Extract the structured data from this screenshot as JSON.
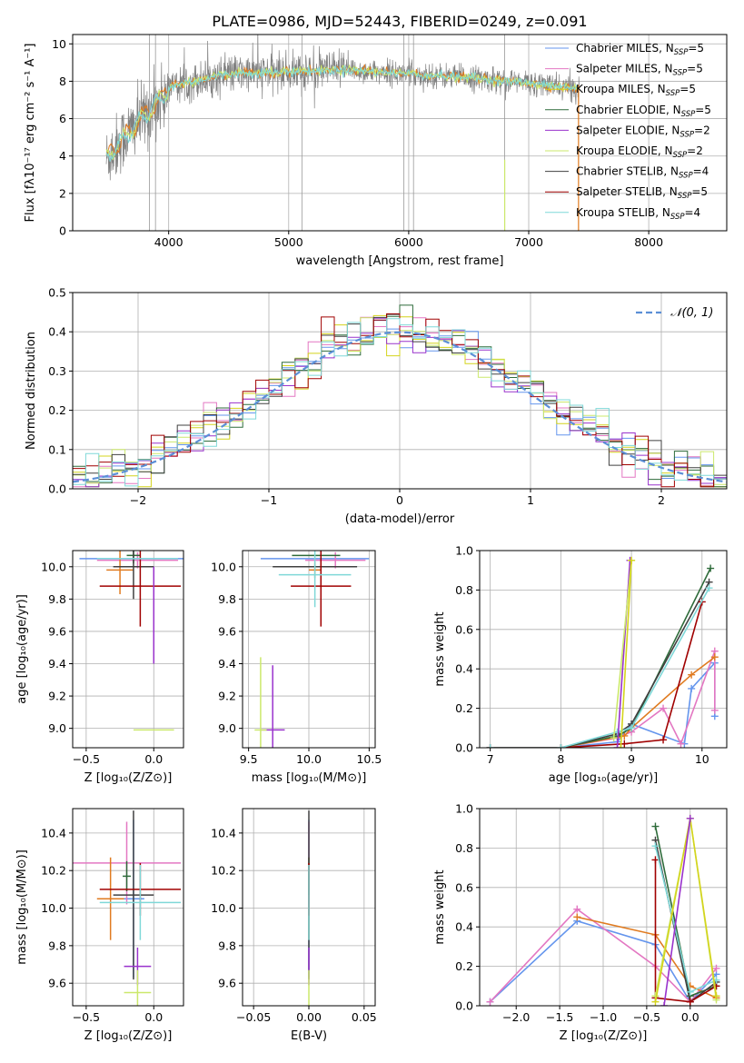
{
  "title": "PLATE=0986, MJD=52443, FIBERID=0249, z=0.091",
  "colors": {
    "chabrier_miles": "#6495ed",
    "salpeter_miles": "#e377c2",
    "kroupa_miles": "#d4d41c",
    "chabrier_elodie": "#2e6b3a",
    "salpeter_elodie": "#9932cc",
    "kroupa_elodie": "#cbe86b",
    "chabrier_stelib": "#404040",
    "salpeter_stelib": "#a00000",
    "kroupa_stelib": "#7fd8d8",
    "orange": "#e07b20",
    "data": "#808080",
    "normal": "#5b8fd6"
  },
  "legend": [
    {
      "label": "Chabrier MILES, N",
      "sub": "SSP",
      "val": "=5",
      "color": "#6495ed"
    },
    {
      "label": "Salpeter MILES, N",
      "sub": "SSP",
      "val": "=5",
      "color": "#e377c2"
    },
    {
      "label": "Kroupa MILES, N",
      "sub": "SSP",
      "val": "=5",
      "color": "#d4d41c"
    },
    {
      "label": "Chabrier ELODIE, N",
      "sub": "SSP",
      "val": "=5",
      "color": "#2e6b3a"
    },
    {
      "label": "Salpeter ELODIE, N",
      "sub": "SSP",
      "val": "=2",
      "color": "#9932cc"
    },
    {
      "label": "Kroupa ELODIE, N",
      "sub": "SSP",
      "val": "=2",
      "color": "#cbe86b"
    },
    {
      "label": "Chabrier STELIB, N",
      "sub": "SSP",
      "val": "=4",
      "color": "#404040"
    },
    {
      "label": "Salpeter STELIB, N",
      "sub": "SSP",
      "val": "=5",
      "color": "#a00000"
    },
    {
      "label": "Kroupa STELIB, N",
      "sub": "SSP",
      "val": "=4",
      "color": "#7fd8d8"
    }
  ],
  "chart_data": [
    {
      "type": "line",
      "xlabel": "wavelength [Angstrom, rest frame]",
      "ylabel": "Flux [fλ10⁻¹⁷ erg cm⁻² s⁻¹ A⁻¹]",
      "xlim": [
        3200,
        8650
      ],
      "ylim": [
        0,
        10.5
      ],
      "xticks": [
        4000,
        5000,
        6000,
        7000,
        8000
      ],
      "yticks": [
        0,
        2,
        4,
        6,
        8,
        10
      ],
      "continuum": {
        "x": [
          3500,
          3600,
          3700,
          3800,
          3900,
          4000,
          4100,
          4300,
          4500,
          5000,
          5500,
          6000,
          6500,
          7000,
          7400
        ],
        "y": [
          4.0,
          4.8,
          5.5,
          6.2,
          6.8,
          7.6,
          7.9,
          8.1,
          8.4,
          8.5,
          8.6,
          8.4,
          8.2,
          7.9,
          7.6
        ]
      }
    },
    {
      "type": "bar",
      "xlabel": "(data-model)/error",
      "ylabel": "Normed distribution",
      "xlim": [
        -2.5,
        2.5
      ],
      "ylim": [
        0,
        0.5
      ],
      "xticks": [
        -2,
        -1,
        0,
        1,
        2
      ],
      "yticks": [
        0.0,
        0.1,
        0.2,
        0.3,
        0.4,
        0.5
      ],
      "legend": "𝒩(0, 1)",
      "histogram_bins": 50
    },
    {
      "type": "scatter",
      "xlabel": "Z [log₁₀(Z/Z⊙)]",
      "ylabel": "age  [log₁₀(age/yr)]",
      "xlim": [
        -0.6,
        0.22
      ],
      "ylim": [
        8.88,
        10.1
      ],
      "xticks": [
        -0.5,
        0.0
      ],
      "yticks": [
        9.0,
        9.2,
        9.4,
        9.6,
        9.8,
        10.0
      ],
      "points": [
        {
          "x": -0.05,
          "y": 10.05,
          "xerr": 0.5,
          "yerr": 0.0,
          "color": "#6495ed"
        },
        {
          "x": -0.12,
          "y": 10.04,
          "xerr": 0.3,
          "yerr": 0.05,
          "color": "#e377c2"
        },
        {
          "x": -0.25,
          "y": 9.98,
          "xerr": 0.1,
          "yerr": 0.15,
          "color": "#e07b20"
        },
        {
          "x": -0.15,
          "y": 10.07,
          "xerr": 0.05,
          "yerr": 0.05,
          "color": "#2e6b3a"
        },
        {
          "x": -0.15,
          "y": 10.0,
          "xerr": 0.15,
          "yerr": 0.2,
          "color": "#404040"
        },
        {
          "x": -0.1,
          "y": 9.88,
          "xerr": 0.3,
          "yerr": 0.25,
          "color": "#a00000"
        },
        {
          "x": -0.12,
          "y": 10.05,
          "xerr": 0.3,
          "yerr": 0.0,
          "color": "#7fd8d8"
        },
        {
          "x": 0.0,
          "y": 9.7,
          "xerr": 0.0,
          "yerr": 0.3,
          "color": "#9932cc"
        },
        {
          "x": 0.0,
          "y": 8.99,
          "xerr": 0.15,
          "yerr": 0.0,
          "color": "#cbe86b"
        }
      ]
    },
    {
      "type": "scatter",
      "xlabel": "mass [log₁₀(M/M⊙)]",
      "ylabel": "",
      "xlim": [
        9.45,
        10.55
      ],
      "ylim": [
        8.88,
        10.1
      ],
      "xticks": [
        9.5,
        10.0,
        10.5
      ],
      "yticks": [
        9.0,
        9.2,
        9.4,
        9.6,
        9.8,
        10.0
      ],
      "points": [
        {
          "x": 10.05,
          "y": 10.05,
          "xerr": 0.45,
          "yerr": 0.0,
          "color": "#6495ed"
        },
        {
          "x": 10.22,
          "y": 10.04,
          "xerr": 0.25,
          "yerr": 0.05,
          "color": "#e377c2"
        },
        {
          "x": 10.05,
          "y": 9.98,
          "xerr": 0.05,
          "yerr": 0.05,
          "color": "#e07b20"
        },
        {
          "x": 10.06,
          "y": 10.07,
          "xerr": 0.2,
          "yerr": 0.0,
          "color": "#2e6b3a"
        },
        {
          "x": 10.05,
          "y": 10.0,
          "xerr": 0.35,
          "yerr": 0.0,
          "color": "#404040"
        },
        {
          "x": 10.1,
          "y": 9.88,
          "xerr": 0.25,
          "yerr": 0.25,
          "color": "#a00000"
        },
        {
          "x": 10.05,
          "y": 9.95,
          "xerr": 0.3,
          "yerr": 0.2,
          "color": "#7fd8d8"
        },
        {
          "x": 9.7,
          "y": 8.99,
          "xerr": 0.1,
          "yerr": 0.4,
          "color": "#9932cc"
        },
        {
          "x": 9.6,
          "y": 8.99,
          "xerr": 0.05,
          "yerr": 0.45,
          "color": "#cbe86b"
        }
      ]
    },
    {
      "type": "line",
      "xlabel": "age  [log₁₀(age/yr)]",
      "ylabel": "mass weight",
      "xlim": [
        6.85,
        10.35
      ],
      "ylim": [
        0,
        1.0
      ],
      "xticks": [
        7,
        8,
        9,
        10
      ],
      "yticks": [
        0.0,
        0.2,
        0.4,
        0.6,
        0.8,
        1.0
      ],
      "series": [
        {
          "color": "#6495ed",
          "x": [
            7.0,
            8.0,
            8.8,
            9.0,
            9.75,
            9.85,
            10.18,
            10.18
          ],
          "y": [
            0.0,
            0.0,
            0.03,
            0.12,
            0.02,
            0.3,
            0.43,
            0.16
          ]
        },
        {
          "color": "#e377c2",
          "x": [
            7.0,
            8.0,
            8.8,
            9.0,
            9.45,
            9.7,
            10.18,
            10.18
          ],
          "y": [
            0.0,
            0.0,
            0.05,
            0.08,
            0.2,
            0.02,
            0.49,
            0.19
          ]
        },
        {
          "color": "#e07b20",
          "x": [
            7.0,
            8.0,
            8.9,
            9.0,
            9.85,
            10.18
          ],
          "y": [
            0.0,
            0.0,
            0.06,
            0.1,
            0.37,
            0.46
          ]
        },
        {
          "color": "#2e6b3a",
          "x": [
            7.0,
            8.0,
            8.8,
            9.0,
            10.12
          ],
          "y": [
            0.0,
            0.0,
            0.06,
            0.1,
            0.91
          ]
        },
        {
          "color": "#404040",
          "x": [
            7.0,
            8.0,
            8.8,
            9.0,
            10.1
          ],
          "y": [
            0.0,
            0.0,
            0.07,
            0.12,
            0.84
          ]
        },
        {
          "color": "#a00000",
          "x": [
            7.0,
            8.0,
            8.9,
            9.45,
            10.0
          ],
          "y": [
            0.0,
            0.0,
            0.02,
            0.04,
            0.74
          ]
        },
        {
          "color": "#7fd8d8",
          "x": [
            7.0,
            8.0,
            8.8,
            9.0,
            10.1
          ],
          "y": [
            0.0,
            0.0,
            0.08,
            0.1,
            0.81
          ]
        },
        {
          "color": "#9932cc",
          "x": [
            8.8,
            8.98
          ],
          "y": [
            0.0,
            0.95
          ]
        },
        {
          "color": "#cbe86b",
          "x": [
            8.75,
            9.0
          ],
          "y": [
            0.05,
            0.95
          ]
        },
        {
          "color": "#d4d41c",
          "x": [
            8.85,
            9.0
          ],
          "y": [
            0.0,
            0.95
          ]
        }
      ]
    },
    {
      "type": "scatter",
      "xlabel": "Z [log₁₀(Z/Z⊙)]",
      "ylabel": "mass [log₁₀(M/M⊙)]",
      "xlim": [
        -0.6,
        0.22
      ],
      "ylim": [
        9.48,
        10.53
      ],
      "xticks": [
        -0.5,
        0.0
      ],
      "yticks": [
        9.6,
        9.8,
        10.0,
        10.2,
        10.4
      ],
      "points": [
        {
          "x": -0.15,
          "y": 10.05,
          "xerr": 0.08,
          "yerr": 0.42,
          "color": "#6495ed"
        },
        {
          "x": -0.2,
          "y": 10.24,
          "xerr": 0.4,
          "yerr": 0.22,
          "color": "#e377c2"
        },
        {
          "x": -0.32,
          "y": 10.05,
          "xerr": 0.1,
          "yerr": 0.22,
          "color": "#e07b20"
        },
        {
          "x": -0.2,
          "y": 10.17,
          "xerr": 0.03,
          "yerr": 0.08,
          "color": "#2e6b3a"
        },
        {
          "x": -0.15,
          "y": 10.07,
          "xerr": 0.15,
          "yerr": 0.45,
          "color": "#404040"
        },
        {
          "x": -0.1,
          "y": 10.1,
          "xerr": 0.3,
          "yerr": 0.14,
          "color": "#a00000"
        },
        {
          "x": -0.1,
          "y": 10.03,
          "xerr": 0.3,
          "yerr": 0.2,
          "color": "#7fd8d8"
        },
        {
          "x": -0.12,
          "y": 9.69,
          "xerr": 0.1,
          "yerr": 0.1,
          "color": "#9932cc"
        },
        {
          "x": -0.12,
          "y": 9.55,
          "xerr": 0.1,
          "yerr": 0.12,
          "color": "#cbe86b"
        }
      ]
    },
    {
      "type": "scatter",
      "xlabel": "E(B-V)",
      "ylabel": "",
      "xlim": [
        -0.06,
        0.06
      ],
      "ylim": [
        9.48,
        10.53
      ],
      "xticks": [
        -0.05,
        0.0,
        0.05
      ],
      "yticks": [
        9.6,
        9.8,
        10.0,
        10.2,
        10.4
      ],
      "points": [
        {
          "x": 0.0,
          "y": 10.05,
          "xerr": 0,
          "yerr": 0.42,
          "color": "#6495ed"
        },
        {
          "x": 0.0,
          "y": 10.24,
          "xerr": 0,
          "yerr": 0.22,
          "color": "#e377c2"
        },
        {
          "x": 0.0,
          "y": 10.05,
          "xerr": 0,
          "yerr": 0.22,
          "color": "#e07b20"
        },
        {
          "x": 0.0,
          "y": 10.17,
          "xerr": 0,
          "yerr": 0.1,
          "color": "#2e6b3a"
        },
        {
          "x": 0.0,
          "y": 10.07,
          "xerr": 0,
          "yerr": 0.45,
          "color": "#404040"
        },
        {
          "x": 0.0,
          "y": 10.1,
          "xerr": 0,
          "yerr": 0.14,
          "color": "#a00000"
        },
        {
          "x": 0.0,
          "y": 10.03,
          "xerr": 0,
          "yerr": 0.2,
          "color": "#7fd8d8"
        },
        {
          "x": 0.0,
          "y": 9.69,
          "xerr": 0,
          "yerr": 0.1,
          "color": "#9932cc"
        },
        {
          "x": 0.0,
          "y": 9.55,
          "xerr": 0,
          "yerr": 0.12,
          "color": "#cbe86b"
        }
      ]
    },
    {
      "type": "line",
      "xlabel": "Z [log₁₀(Z/Z⊙)]",
      "ylabel": "mass weight",
      "xlim": [
        -2.42,
        0.42
      ],
      "ylim": [
        0,
        1.0
      ],
      "xticks": [
        -2.0,
        -1.5,
        -1.0,
        -0.5,
        0.0
      ],
      "yticks": [
        0.0,
        0.2,
        0.4,
        0.6,
        0.8,
        1.0
      ],
      "series": [
        {
          "color": "#6495ed",
          "x": [
            -2.3,
            -1.3,
            -0.4,
            0.0,
            0.3
          ],
          "y": [
            0.02,
            0.43,
            0.31,
            0.02,
            0.16
          ]
        },
        {
          "color": "#e377c2",
          "x": [
            -2.3,
            -1.3,
            -0.4,
            0.0,
            0.3
          ],
          "y": [
            0.02,
            0.49,
            0.2,
            0.02,
            0.19
          ]
        },
        {
          "color": "#e07b20",
          "x": [
            -1.3,
            -0.4,
            0.0,
            0.3
          ],
          "y": [
            0.45,
            0.36,
            0.1,
            0.04
          ]
        },
        {
          "color": "#2e6b3a",
          "x": [
            -0.4,
            0.0,
            0.3
          ],
          "y": [
            0.91,
            0.05,
            0.1
          ]
        },
        {
          "color": "#404040",
          "x": [
            -0.4,
            0.0,
            0.3
          ],
          "y": [
            0.84,
            0.02,
            0.12
          ]
        },
        {
          "color": "#a00000",
          "x": [
            -0.4,
            -0.4,
            0.0,
            0.3
          ],
          "y": [
            0.74,
            0.04,
            0.02,
            0.1
          ]
        },
        {
          "color": "#7fd8d8",
          "x": [
            -0.4,
            0.0,
            0.3
          ],
          "y": [
            0.81,
            0.07,
            0.13
          ]
        },
        {
          "color": "#cbe86b",
          "x": [
            -0.4,
            0.0,
            0.3
          ],
          "y": [
            0.05,
            0.95,
            0.03
          ]
        },
        {
          "color": "#d4d41c",
          "x": [
            -0.4,
            0.0,
            0.3
          ],
          "y": [
            0.02,
            0.95,
            0.05
          ]
        },
        {
          "color": "#9932cc",
          "x": [
            -0.3,
            0.0
          ],
          "y": [
            0.0,
            0.95
          ]
        }
      ]
    }
  ]
}
